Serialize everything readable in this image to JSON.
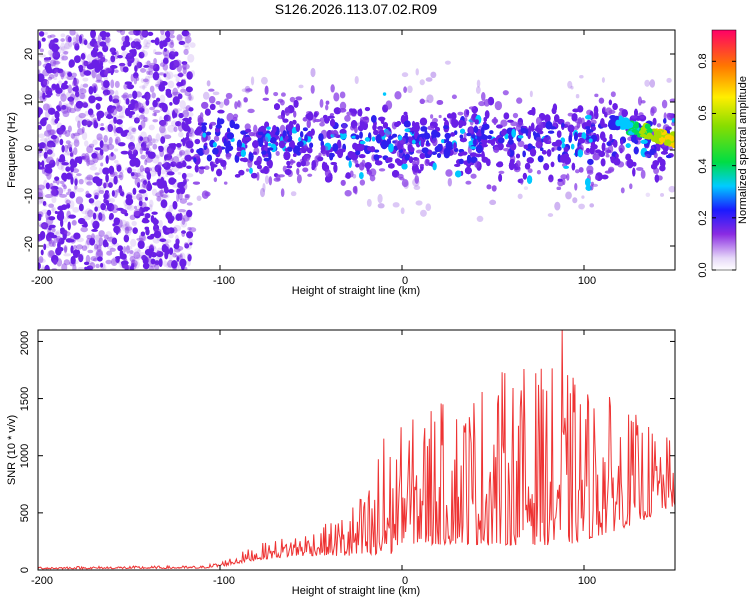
{
  "chart_data": [
    {
      "type": "heatmap",
      "title": "S126.2026.113.07.02.R09",
      "xlabel": "Height of straight line (km)",
      "ylabel": "Frequency (Hz)",
      "xlim": [
        -200,
        150
      ],
      "ylim": [
        -25,
        25
      ],
      "xticks": [
        -200,
        -100,
        0,
        100
      ],
      "yticks": [
        20,
        10,
        0,
        -10,
        -20
      ],
      "xtick_labels": [
        "-200",
        "-100",
        "0",
        "100"
      ],
      "ytick_labels": [
        "20",
        "10",
        "0",
        "-10",
        "-20"
      ],
      "colorbar": {
        "label": "Normalized spectral amplitude",
        "range": [
          0,
          0.92
        ],
        "ticks": [
          0,
          0.2,
          0.4,
          0.6,
          0.8
        ],
        "tick_labels": [
          "0.0",
          "0.2",
          "0.4",
          "0.6",
          "0.8"
        ]
      },
      "features": {
        "broadband_noise_x_range": [
          -200,
          -115
        ],
        "band_center_hz": 2,
        "band_halfwidth_hz": 7,
        "strong_tail_x_range": [
          115,
          150
        ],
        "strong_tail_freq_hz": 2
      }
    },
    {
      "type": "line",
      "xlabel": "Height of straight line (km)",
      "ylabel": "SNR (10 * v/v)",
      "xlim": [
        -200,
        150
      ],
      "ylim": [
        0,
        2100
      ],
      "xticks": [
        -200,
        -100,
        0,
        100
      ],
      "yticks": [
        0,
        500,
        1000,
        1500,
        2000
      ],
      "xtick_labels": [
        "-200",
        "-100",
        "0",
        "100"
      ],
      "ytick_labels": [
        "0",
        "500",
        "1000",
        "1500",
        "2000"
      ],
      "color": "#ee3333",
      "x_resolution_km": 0.5,
      "envelope": {
        "x": [
          -200,
          -110,
          -100,
          -80,
          -60,
          -40,
          -20,
          -12,
          -5,
          0,
          15,
          30,
          50,
          70,
          90,
          110,
          130,
          150
        ],
        "base": [
          15,
          20,
          40,
          120,
          170,
          200,
          250,
          300,
          400,
          500,
          520,
          560,
          600,
          620,
          600,
          620,
          650,
          700
        ],
        "amplitude": [
          20,
          20,
          40,
          120,
          180,
          260,
          550,
          1000,
          900,
          950,
          1100,
          1200,
          1400,
          1450,
          1400,
          1150,
          850,
          500
        ]
      },
      "peaks": [
        {
          "x": 88,
          "y": 2100
        },
        {
          "x": -10,
          "y": 1150
        },
        {
          "x": 75,
          "y": 1620
        },
        {
          "x": 16,
          "y": 1390
        }
      ]
    }
  ]
}
